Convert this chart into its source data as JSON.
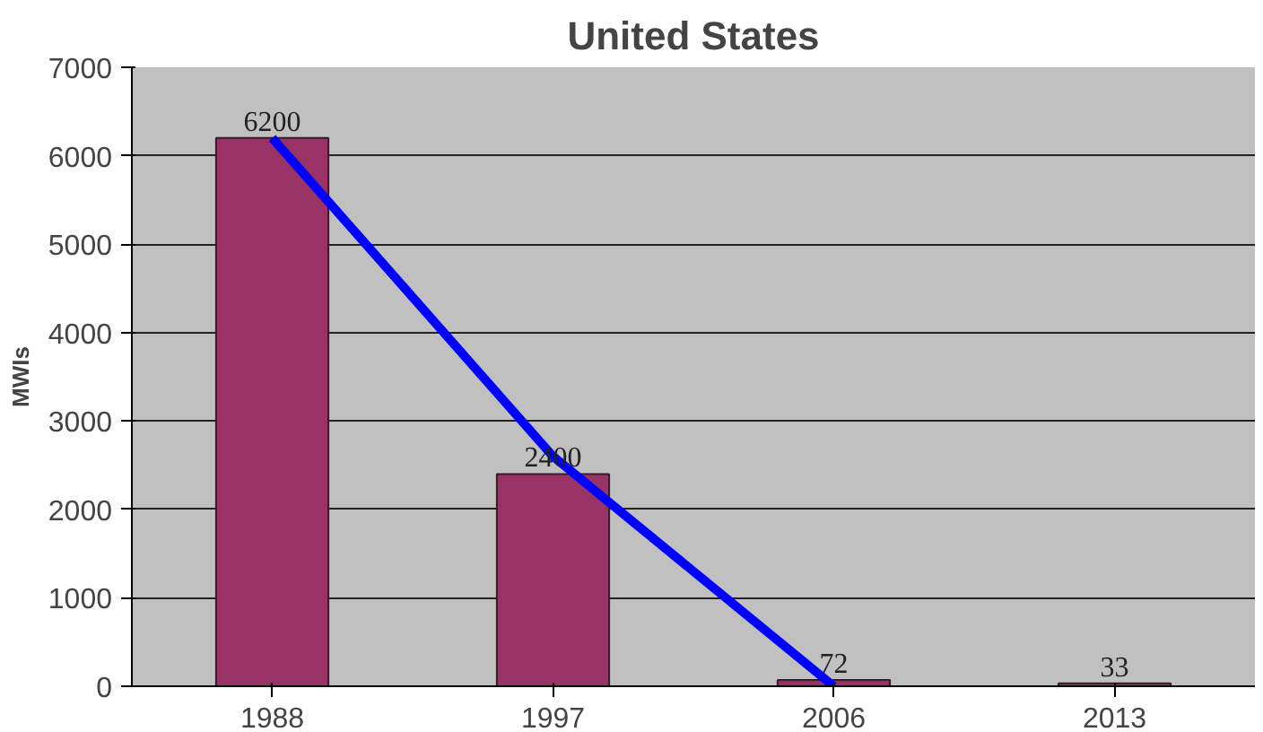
{
  "chart_data": {
    "type": "bar",
    "title": "United States",
    "ylabel": "MWIs",
    "categories": [
      "1988",
      "1997",
      "2006",
      "2013"
    ],
    "series": [
      {
        "color": "#993366",
        "values": [
          6200,
          2400,
          72,
          33
        ],
        "value_labels": [
          "6200",
          "2400",
          "72",
          "33"
        ]
      },
      {
        "type": "line",
        "color": "#0000ff",
        "values": [
          6200,
          2600,
          0,
          null
        ]
      }
    ],
    "ylim": [
      0,
      7000
    ],
    "yticks": [
      0,
      1000,
      2000,
      3000,
      4000,
      5000,
      6000,
      7000
    ],
    "grid": "y",
    "line_style": "solid"
  }
}
